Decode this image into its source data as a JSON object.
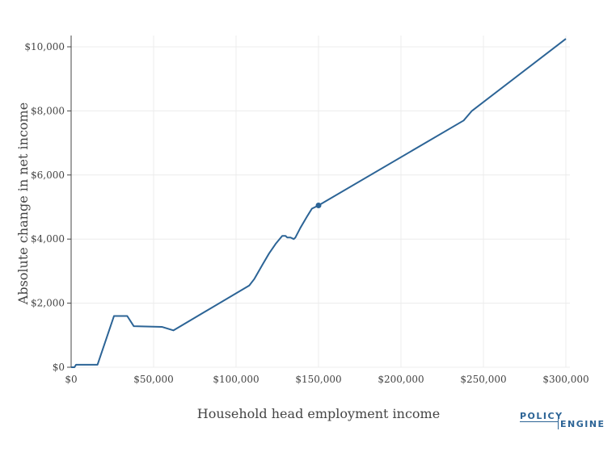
{
  "chart_data": {
    "type": "line",
    "xlabel": "Household head employment income",
    "ylabel": "Absolute change in net income",
    "xlim": [
      0,
      300000
    ],
    "ylim": [
      0,
      10000
    ],
    "x_ticks": [
      0,
      50000,
      100000,
      150000,
      200000,
      250000,
      300000
    ],
    "x_tick_labels": [
      "$0",
      "$50,000",
      "$100,000",
      "$150,000",
      "$200,000",
      "$250,000",
      "$300,000"
    ],
    "y_ticks": [
      0,
      2000,
      4000,
      6000,
      8000,
      10000
    ],
    "y_tick_labels": [
      "$0",
      "$2,000",
      "$4,000",
      "$6,000",
      "$8,000",
      "$10,000"
    ],
    "grid": true,
    "series": [
      {
        "color": "#2c6496",
        "points": [
          [
            0,
            0
          ],
          [
            2000,
            0
          ],
          [
            3000,
            80
          ],
          [
            16000,
            80
          ],
          [
            26000,
            1600
          ],
          [
            34000,
            1600
          ],
          [
            38000,
            1280
          ],
          [
            55000,
            1260
          ],
          [
            62000,
            1150
          ],
          [
            108000,
            2550
          ],
          [
            111000,
            2750
          ],
          [
            116000,
            3200
          ],
          [
            120000,
            3550
          ],
          [
            124000,
            3850
          ],
          [
            128000,
            4100
          ],
          [
            130000,
            4100
          ],
          [
            131000,
            4050
          ],
          [
            133000,
            4050
          ],
          [
            135000,
            4000
          ],
          [
            136000,
            4050
          ],
          [
            139000,
            4350
          ],
          [
            143000,
            4700
          ],
          [
            146000,
            4950
          ],
          [
            150000,
            5050
          ],
          [
            238000,
            7700
          ],
          [
            243000,
            8000
          ],
          [
            300000,
            10250
          ]
        ],
        "marker": [
          150000,
          5050
        ]
      }
    ]
  },
  "branding": {
    "logo_line1": "POLICY",
    "logo_line2": "ENGINE"
  }
}
